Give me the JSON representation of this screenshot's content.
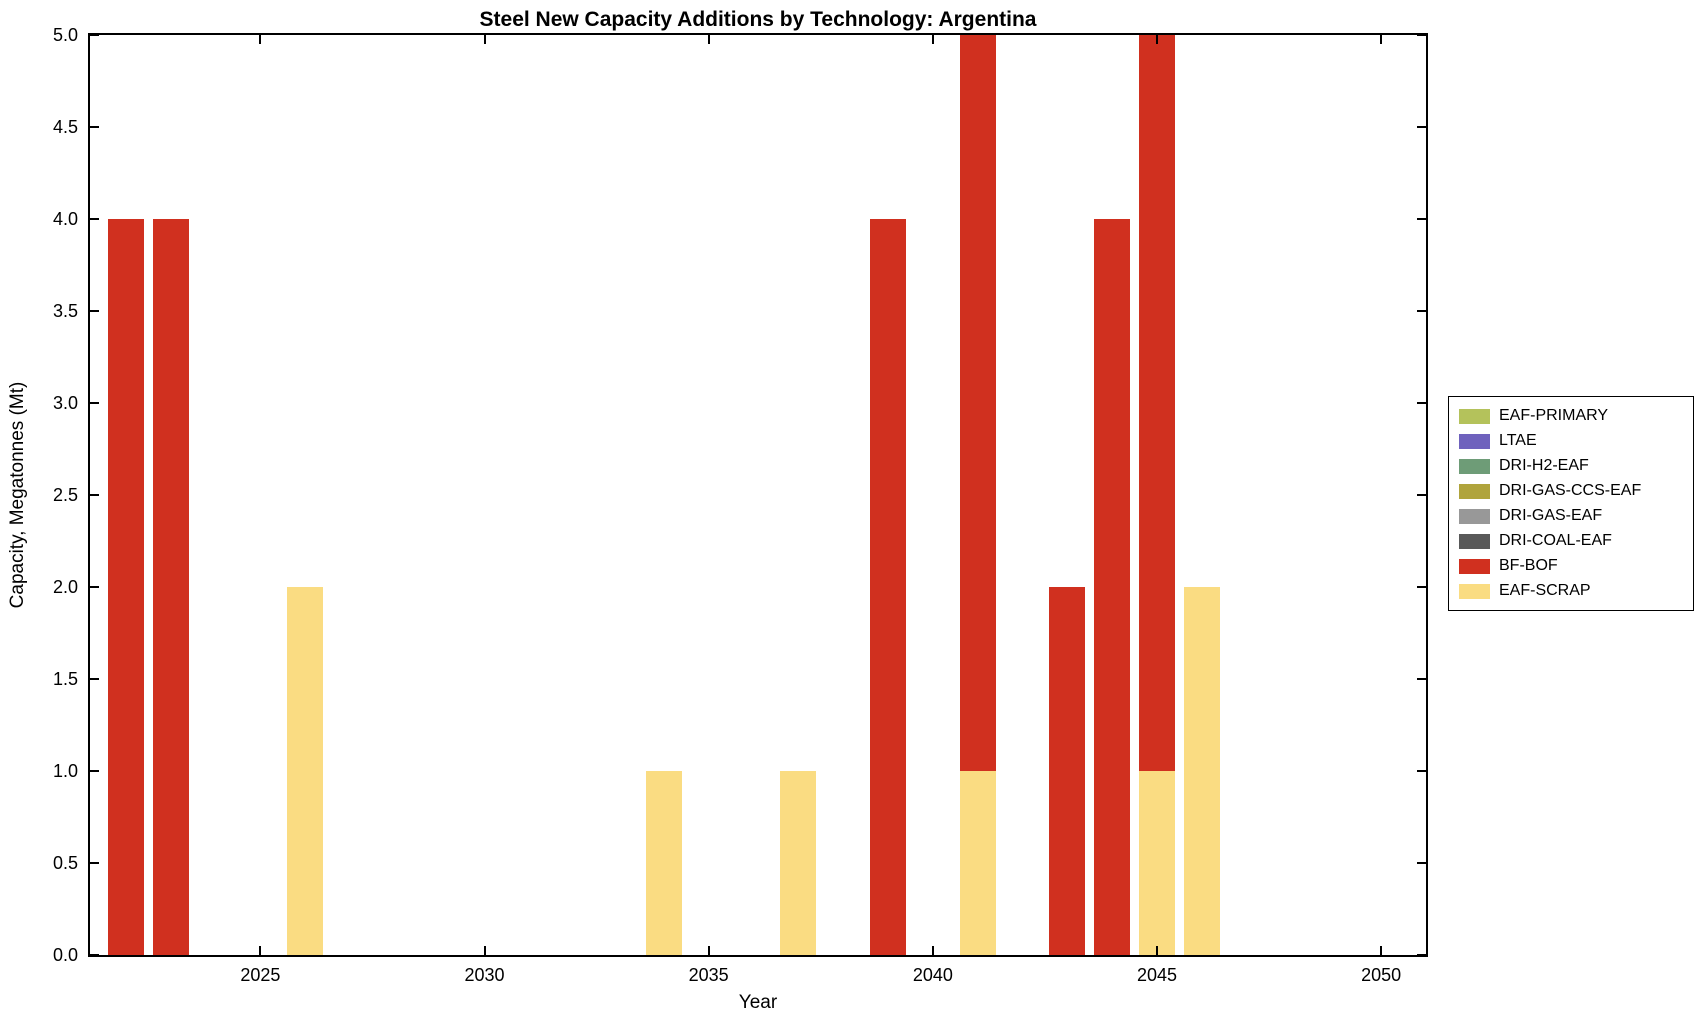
{
  "chart_data": {
    "type": "bar",
    "stacked": true,
    "title": "Steel New Capacity Additions by Technology: Argentina",
    "xlabel": "Year",
    "ylabel": "Capacity, Megatonnes (Mt)",
    "xlim": [
      2021.2,
      2051
    ],
    "ylim": [
      0,
      5
    ],
    "bar_width_years": 0.8,
    "grid": false,
    "legend_position": "right-outside",
    "xticks": [
      2025,
      2030,
      2035,
      2040,
      2045,
      2050
    ],
    "xtick_labels": [
      "2025",
      "2030",
      "2035",
      "2040",
      "2045",
      "2050"
    ],
    "yticks": [
      0,
      0.5,
      1,
      1.5,
      2,
      2.5,
      3,
      3.5,
      4,
      4.5,
      5
    ],
    "ytick_labels": [
      "0.0",
      "0.5",
      "1.0",
      "1.5",
      "2.0",
      "2.5",
      "3.0",
      "3.5",
      "4.0",
      "4.5",
      "5.0"
    ],
    "legend": [
      {
        "label": "EAF-PRIMARY",
        "color": "#b4c25b"
      },
      {
        "label": "LTAE",
        "color": "#6f62bd"
      },
      {
        "label": "DRI-H2-EAF",
        "color": "#6e9c77"
      },
      {
        "label": "DRI-GAS-CCS-EAF",
        "color": "#b0a43c"
      },
      {
        "label": "DRI-GAS-EAF",
        "color": "#989898"
      },
      {
        "label": "DRI-COAL-EAF",
        "color": "#595959"
      },
      {
        "label": "BF-BOF",
        "color": "#d0301f"
      },
      {
        "label": "EAF-SCRAP",
        "color": "#fadc82"
      }
    ],
    "bars": [
      {
        "year": 2022,
        "segments": [
          {
            "series": "BF-BOF",
            "value": 4
          }
        ]
      },
      {
        "year": 2023,
        "segments": [
          {
            "series": "BF-BOF",
            "value": 4
          }
        ]
      },
      {
        "year": 2026,
        "segments": [
          {
            "series": "EAF-SCRAP",
            "value": 2
          }
        ]
      },
      {
        "year": 2034,
        "segments": [
          {
            "series": "EAF-SCRAP",
            "value": 1
          }
        ]
      },
      {
        "year": 2037,
        "segments": [
          {
            "series": "EAF-SCRAP",
            "value": 1
          }
        ]
      },
      {
        "year": 2039,
        "segments": [
          {
            "series": "BF-BOF",
            "value": 4
          }
        ]
      },
      {
        "year": 2041,
        "segments": [
          {
            "series": "EAF-SCRAP",
            "value": 1
          },
          {
            "series": "BF-BOF",
            "value": 4
          }
        ]
      },
      {
        "year": 2043,
        "segments": [
          {
            "series": "BF-BOF",
            "value": 2
          }
        ]
      },
      {
        "year": 2044,
        "segments": [
          {
            "series": "BF-BOF",
            "value": 4
          }
        ]
      },
      {
        "year": 2045,
        "segments": [
          {
            "series": "EAF-SCRAP",
            "value": 1
          },
          {
            "series": "BF-BOF",
            "value": 4
          }
        ]
      },
      {
        "year": 2046,
        "segments": [
          {
            "series": "EAF-SCRAP",
            "value": 2
          }
        ]
      }
    ]
  }
}
